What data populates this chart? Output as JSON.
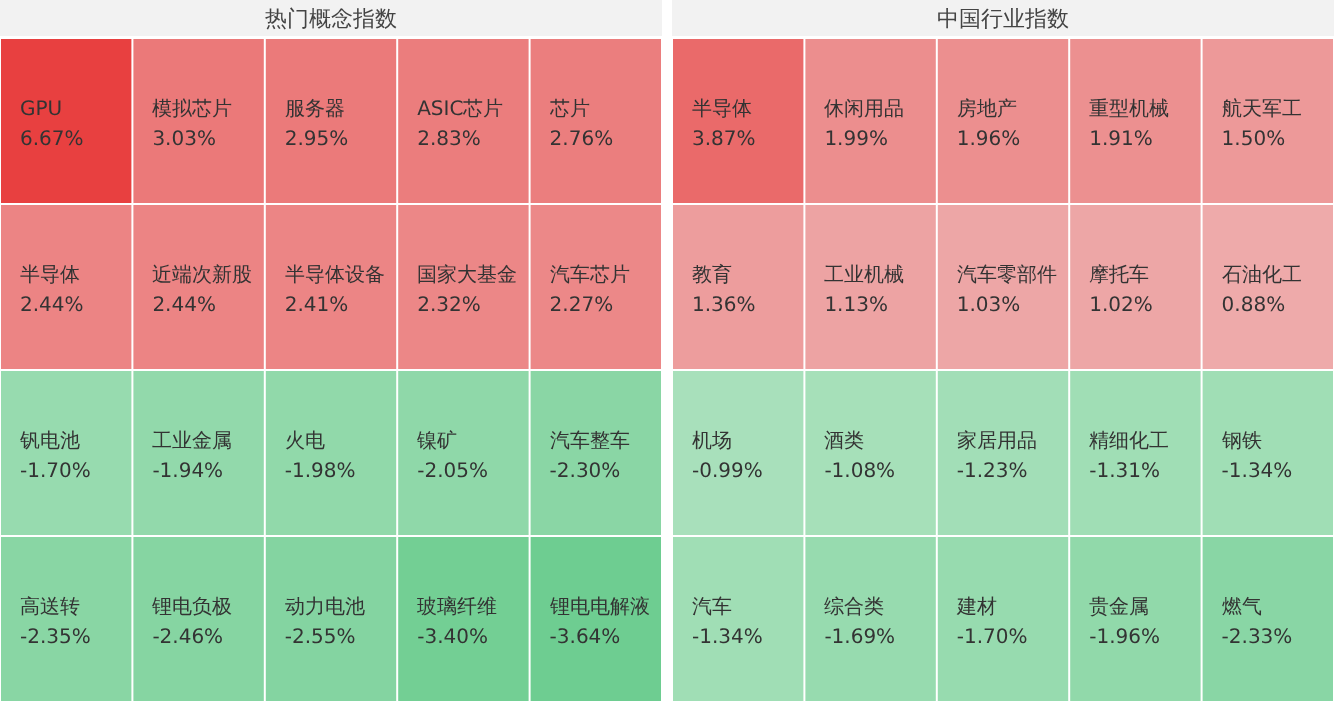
{
  "chart_data": [
    {
      "type": "other",
      "title": "热门概念指数",
      "categories": [
        "GPU",
        "模拟芯片",
        "服务器",
        "ASIC芯片",
        "芯片",
        "半导体",
        "近端次新股",
        "半导体设备",
        "国家大基金",
        "汽车芯片",
        "钒电池",
        "工业金属",
        "火电",
        "镍矿",
        "汽车整车",
        "高送转",
        "锂电负极",
        "动力电池",
        "玻璃纤维",
        "锂电电解液"
      ],
      "values": [
        6.67,
        3.03,
        2.95,
        2.83,
        2.76,
        2.44,
        2.44,
        2.41,
        2.32,
        2.27,
        -1.7,
        -1.94,
        -1.98,
        -2.05,
        -2.3,
        -2.35,
        -2.46,
        -2.55,
        -3.4,
        -3.64
      ],
      "value_labels": [
        "6.67%",
        "3.03%",
        "2.95%",
        "2.83%",
        "2.76%",
        "2.44%",
        "2.44%",
        "2.41%",
        "2.32%",
        "2.27%",
        "-1.70%",
        "-1.94%",
        "-1.98%",
        "-2.05%",
        "-2.30%",
        "-2.35%",
        "-2.46%",
        "-2.55%",
        "-3.40%",
        "-3.64%"
      ]
    },
    {
      "type": "other",
      "title": "中国行业指数",
      "categories": [
        "半导体",
        "休闲用品",
        "房地产",
        "重型机械",
        "航天军工",
        "教育",
        "工业机械",
        "汽车零部件",
        "摩托车",
        "石油化工",
        "机场",
        "酒类",
        "家居用品",
        "精细化工",
        "钢铁",
        "汽车",
        "综合类",
        "建材",
        "贵金属",
        "燃气"
      ],
      "values": [
        3.87,
        1.99,
        1.96,
        1.91,
        1.5,
        1.36,
        1.13,
        1.03,
        1.02,
        0.88,
        -0.99,
        -1.08,
        -1.23,
        -1.31,
        -1.34,
        -1.34,
        -1.69,
        -1.7,
        -1.96,
        -2.33
      ],
      "value_labels": [
        "3.87%",
        "1.99%",
        "1.96%",
        "1.91%",
        "1.50%",
        "1.36%",
        "1.13%",
        "1.03%",
        "1.02%",
        "0.88%",
        "-0.99%",
        "-1.08%",
        "-1.23%",
        "-1.31%",
        "-1.34%",
        "-1.34%",
        "-1.69%",
        "-1.70%",
        "-1.96%",
        "-2.33%"
      ]
    }
  ]
}
